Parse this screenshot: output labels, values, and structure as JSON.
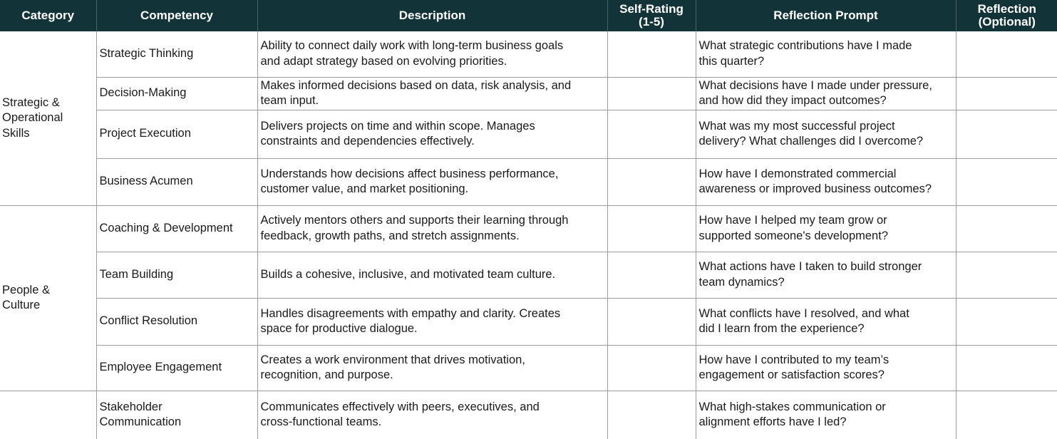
{
  "header": {
    "category": "Category",
    "competency": "Competency",
    "description": "Description",
    "self_rating": [
      "Self-Rating",
      "(1-5)"
    ],
    "reflection_prompt": "Reflection Prompt",
    "reflection": [
      "Reflection",
      "(Optional)"
    ]
  },
  "groups": [
    {
      "category": [
        "Strategic &",
        "Operational",
        "Skills"
      ],
      "rows": [
        {
          "competency": [
            "Strategic Thinking"
          ],
          "description": [
            "Ability to connect daily work with long-term business goals",
            "and adapt strategy based on evolving priorities."
          ],
          "self_rating": "",
          "prompt": [
            "What strategic contributions have I made",
            "this quarter?"
          ],
          "reflection": ""
        },
        {
          "competency": [
            "Decision-Making"
          ],
          "description": [
            "Makes informed decisions based on data, risk analysis, and",
            "team input."
          ],
          "self_rating": "",
          "prompt": [
            "What decisions have I made under pressure,",
            "and how did they impact outcomes?"
          ],
          "reflection": ""
        },
        {
          "competency": [
            "Project Execution"
          ],
          "description": [
            "Delivers projects on time and within scope. Manages",
            "constraints and dependencies effectively."
          ],
          "self_rating": "",
          "prompt": [
            "What was my most successful project",
            "delivery? What challenges did I overcome?"
          ],
          "reflection": ""
        },
        {
          "competency": [
            "Business Acumen"
          ],
          "description": [
            "Understands how decisions affect business performance,",
            "customer value, and market positioning."
          ],
          "self_rating": "",
          "prompt": [
            "How have I demonstrated commercial",
            "awareness or improved business outcomes?"
          ],
          "reflection": ""
        }
      ]
    },
    {
      "category": [
        "People &",
        "Culture"
      ],
      "rows": [
        {
          "competency": [
            "Coaching & Development"
          ],
          "description": [
            "Actively mentors others and supports their learning through",
            "feedback, growth paths, and stretch assignments."
          ],
          "self_rating": "",
          "prompt": [
            "How have I helped my team grow or",
            "supported someone's development?"
          ],
          "reflection": ""
        },
        {
          "competency": [
            "Team Building"
          ],
          "description": [
            "Builds a cohesive, inclusive, and motivated team culture."
          ],
          "self_rating": "",
          "prompt": [
            "What actions have I taken to build stronger",
            "team dynamics?"
          ],
          "reflection": ""
        },
        {
          "competency": [
            "Conflict Resolution"
          ],
          "description": [
            "Handles disagreements with empathy and clarity. Creates",
            "space for productive dialogue."
          ],
          "self_rating": "",
          "prompt": [
            "What conflicts have I resolved, and what",
            "did I learn from the experience?"
          ],
          "reflection": ""
        },
        {
          "competency": [
            "Employee Engagement"
          ],
          "description": [
            "Creates a work environment that drives motivation,",
            "recognition, and purpose."
          ],
          "self_rating": "",
          "prompt": [
            "How have I contributed to my team’s",
            "engagement or satisfaction scores?"
          ],
          "reflection": ""
        }
      ]
    },
    {
      "category": [],
      "rows": [
        {
          "competency": [
            "Stakeholder",
            "Communication"
          ],
          "description": [
            "Communicates effectively with peers, executives, and",
            "cross-functional teams."
          ],
          "self_rating": "",
          "prompt": [
            "What high-stakes communication or",
            "alignment efforts have I led?"
          ],
          "reflection": ""
        }
      ]
    }
  ]
}
